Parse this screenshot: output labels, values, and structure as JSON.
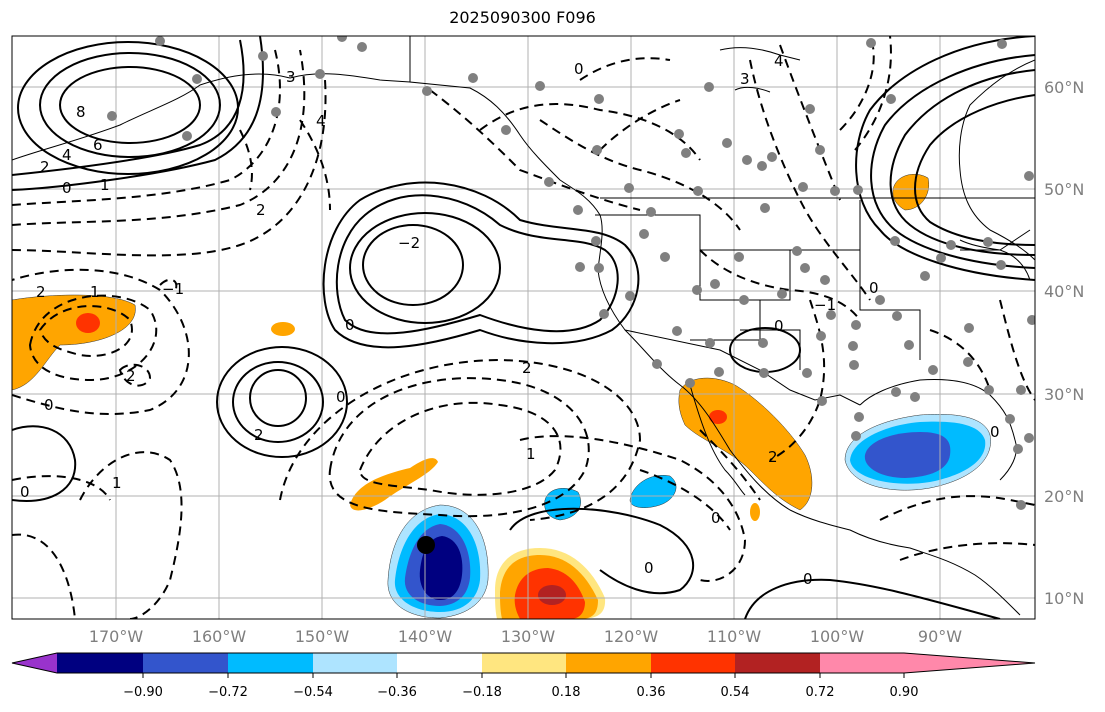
{
  "title": "2025090300 F096",
  "lat_labels": [
    "60°N",
    "50°N",
    "40°N",
    "30°N",
    "20°N",
    "10°N"
  ],
  "lon_labels": [
    "170°W",
    "160°W",
    "150°W",
    "140°W",
    "130°W",
    "120°W",
    "110°W",
    "100°W",
    "90°W"
  ],
  "colorbar": {
    "colors": [
      "#9933cc",
      "#000080",
      "#3355cc",
      "#00bbff",
      "#aee4ff",
      "#ffffff",
      "#ffe680",
      "#ffa500",
      "#ff3300",
      "#b22222",
      "#ff88aa"
    ],
    "tick_labels": [
      "−0.90",
      "−0.72",
      "−0.54",
      "−0.36",
      "−0.18",
      "0.18",
      "0.36",
      "0.54",
      "0.72",
      "0.90"
    ]
  },
  "contour_labels": [
    "8",
    "6",
    "4",
    "2",
    "0",
    "1",
    "2",
    "3",
    "4",
    "2",
    "1",
    "0",
    "−1",
    "2",
    "−2",
    "0",
    "2",
    "0",
    "0",
    "1",
    "0",
    "3",
    "4",
    "0",
    "−1",
    "0",
    "2",
    "2",
    "0",
    "0",
    "1",
    "0",
    "0"
  ],
  "colors": {
    "gray_dot": "#808080",
    "grid": "#b0b0b0",
    "land": "#000000"
  }
}
